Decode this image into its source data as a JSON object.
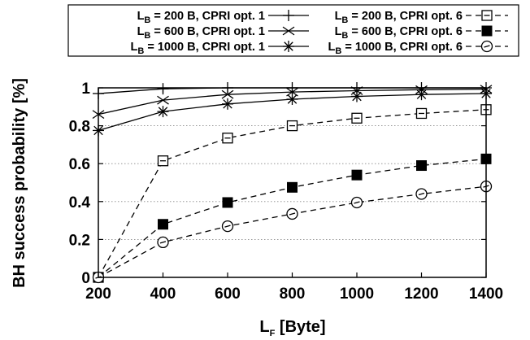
{
  "chart_data": {
    "type": "line",
    "title": "",
    "xlabel": "L",
    "xlabel_sub": "F",
    "xlabel_rest": " [Byte]",
    "ylabel": "BH success probability [%]",
    "x": [
      200,
      400,
      600,
      800,
      1000,
      1200,
      1400
    ],
    "xlim": [
      200,
      1400
    ],
    "ylim": [
      0,
      1
    ],
    "xticks": [
      "200",
      "400",
      "600",
      "800",
      "1000",
      "1200",
      "1400"
    ],
    "yticks": [
      "0",
      "0.2",
      "0.4",
      "0.6",
      "0.8",
      "1"
    ],
    "grid": "horizontal dotted",
    "legend_position": "top",
    "series": [
      {
        "name": "L_B = 200 B, CPRI opt. 1",
        "label_main": "L",
        "label_sub": "B",
        "label_rest": " = 200 B, CPRI opt. 1",
        "marker": "plus",
        "line": "solid",
        "values": [
          0.97,
          0.995,
          1.0,
          1.0,
          1.0,
          1.0,
          1.0
        ]
      },
      {
        "name": "L_B = 600 B, CPRI opt. 1",
        "label_main": "L",
        "label_sub": "B",
        "label_rest": " = 600 B, CPRI opt. 1",
        "marker": "x",
        "line": "solid",
        "values": [
          0.86,
          0.935,
          0.965,
          0.978,
          0.985,
          0.99,
          0.993
        ]
      },
      {
        "name": "L_B = 1000 B, CPRI opt. 1",
        "label_main": "L",
        "label_sub": "B",
        "label_rest": " = 1000 B, CPRI opt. 1",
        "marker": "star",
        "line": "solid",
        "values": [
          0.775,
          0.875,
          0.915,
          0.94,
          0.955,
          0.965,
          0.97
        ]
      },
      {
        "name": "L_B = 200 B, CPRI opt. 6",
        "label_main": "L",
        "label_sub": "B",
        "label_rest": " = 200 B, CPRI opt. 6",
        "marker": "open-square",
        "line": "dashed",
        "values": [
          0.0,
          0.615,
          0.735,
          0.8,
          0.84,
          0.865,
          0.885
        ]
      },
      {
        "name": "L_B = 600 B, CPRI opt. 6",
        "label_main": "L",
        "label_sub": "B",
        "label_rest": " = 600 B, CPRI opt. 6",
        "marker": "filled-square",
        "line": "dashed",
        "values": [
          0.0,
          0.28,
          0.395,
          0.475,
          0.54,
          0.59,
          0.625
        ]
      },
      {
        "name": "L_B = 1000 B, CPRI opt. 6",
        "label_main": "L",
        "label_sub": "B",
        "label_rest": " = 1000 B, CPRI opt. 6",
        "marker": "open-circle",
        "line": "dashed",
        "values": [
          0.0,
          0.185,
          0.27,
          0.335,
          0.395,
          0.44,
          0.48
        ]
      }
    ],
    "colors": {
      "line": "#000000",
      "grid": "#888888",
      "background": "#ffffff"
    }
  }
}
